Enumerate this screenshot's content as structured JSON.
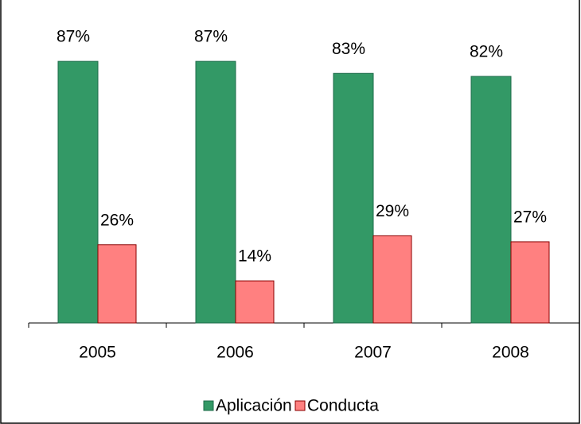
{
  "chart_data": {
    "type": "bar",
    "categories": [
      "2005",
      "2006",
      "2007",
      "2008"
    ],
    "series": [
      {
        "name": "Aplicación",
        "color": "#339966",
        "values": [
          87,
          87,
          83,
          82
        ],
        "value_labels": [
          "87%",
          "87%",
          "83%",
          "82%"
        ]
      },
      {
        "name": "Conducta",
        "color": "#ff8080",
        "values": [
          26,
          14,
          29,
          27
        ],
        "value_labels": [
          "26%",
          "14%",
          "29%",
          "27%"
        ]
      }
    ]
  }
}
